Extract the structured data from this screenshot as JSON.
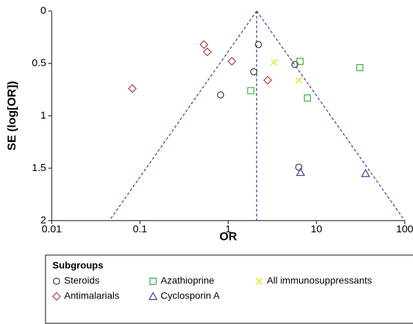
{
  "chart_data": {
    "type": "scatter",
    "xlabel": "OR",
    "ylabel": "SE (log[OR])",
    "xscale": "log",
    "xlim": [
      0.01,
      100
    ],
    "xticks": [
      0.01,
      0.1,
      1,
      10,
      100
    ],
    "ylim": [
      0,
      2
    ],
    "y_inverted": true,
    "yticks": [
      0,
      0.5,
      1,
      1.5,
      2
    ],
    "grid": false,
    "legend_title": "Subgroups",
    "legend_position": "bottom",
    "series": [
      {
        "name": "Steroids",
        "marker": "circle",
        "color": "#333333",
        "x": [
          2.2,
          1.95,
          0.82,
          5.7,
          6.3
        ],
        "values": [
          0.32,
          0.58,
          0.8,
          0.51,
          1.49
        ]
      },
      {
        "name": "Azathioprine",
        "marker": "square",
        "color": "#33aa33",
        "x": [
          6.5,
          31,
          1.8,
          7.9
        ],
        "values": [
          0.48,
          0.54,
          0.76,
          0.83
        ]
      },
      {
        "name": "All immunosuppressants",
        "marker": "x",
        "color": "#e6e633",
        "x": [
          3.3,
          6.3
        ],
        "values": [
          0.49,
          0.66
        ]
      },
      {
        "name": "Antimalarials",
        "marker": "diamond",
        "color": "#a0393a",
        "x": [
          0.082,
          0.53,
          0.58,
          1.1,
          2.8
        ],
        "values": [
          0.74,
          0.32,
          0.39,
          0.48,
          0.66
        ]
      },
      {
        "name": "Cyclosporin A",
        "marker": "triangle",
        "color": "#333399",
        "x": [
          6.6,
          36
        ],
        "values": [
          1.54,
          1.55
        ]
      }
    ],
    "funnel_color": "#333399",
    "funnel_lines": [
      {
        "x": [
          2.1,
          0.045
        ],
        "values": [
          0,
          2
        ]
      },
      {
        "x": [
          2.1,
          100
        ],
        "values": [
          0,
          2
        ]
      },
      {
        "x": [
          2.1,
          2.1
        ],
        "values": [
          0,
          2
        ]
      }
    ]
  }
}
